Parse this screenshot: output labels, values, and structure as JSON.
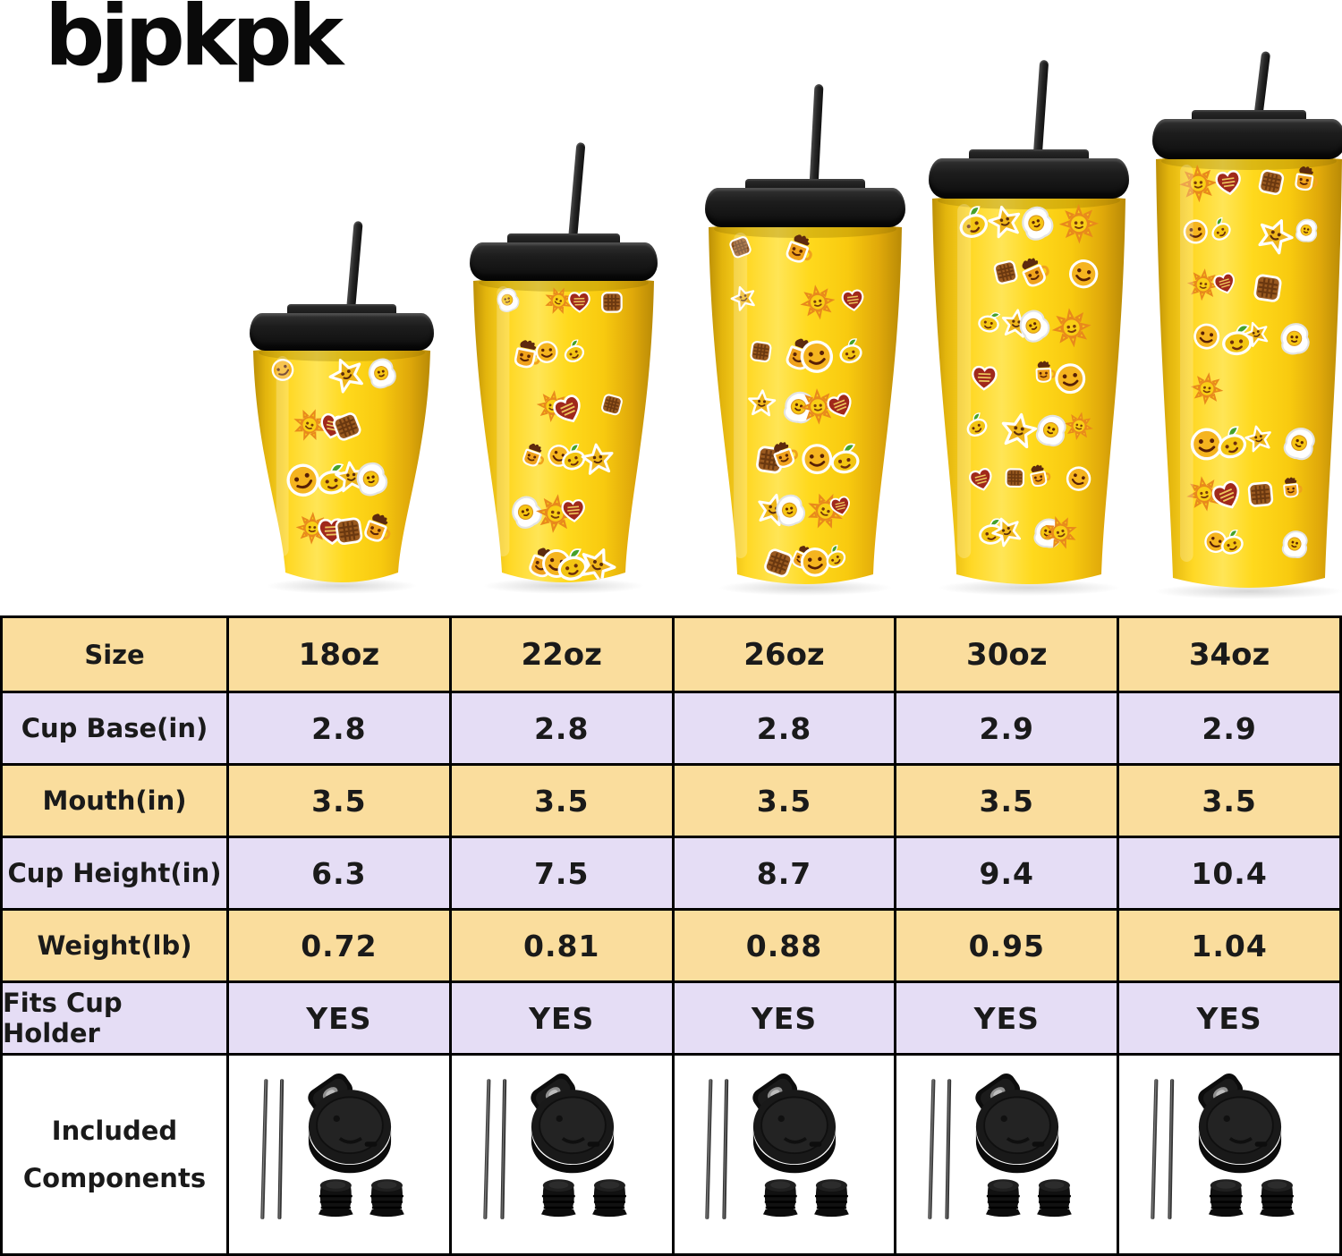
{
  "brand": {
    "logo_text": "bjpkpk"
  },
  "lineup": {
    "tumblers": [
      {
        "size": "18oz"
      },
      {
        "size": "22oz"
      },
      {
        "size": "26oz"
      },
      {
        "size": "30oz"
      },
      {
        "size": "34oz"
      }
    ],
    "sticker_icons": [
      "smiley-face",
      "lemon-character",
      "star-character",
      "fried-egg-character",
      "line-art-sun",
      "heart-badge",
      "waffle",
      "mug-character"
    ],
    "cup_style": "yellow tumbler with black flip lid and black straw"
  },
  "spec_table": {
    "rows": [
      {
        "label": "Size",
        "values": [
          "18oz",
          "22oz",
          "26oz",
          "30oz",
          "34oz"
        ]
      },
      {
        "label": "Cup Base(in)",
        "values": [
          "2.8",
          "2.8",
          "2.8",
          "2.9",
          "2.9"
        ]
      },
      {
        "label": "Mouth(in)",
        "values": [
          "3.5",
          "3.5",
          "3.5",
          "3.5",
          "3.5"
        ]
      },
      {
        "label": "Cup Height(in)",
        "values": [
          "6.3",
          "7.5",
          "8.7",
          "9.4",
          "10.4"
        ]
      },
      {
        "label": "Weight(lb)",
        "values": [
          "0.72",
          "0.81",
          "0.88",
          "0.95",
          "1.04"
        ]
      },
      {
        "label": "Fits Cup Holder",
        "values": [
          "YES",
          "YES",
          "YES",
          "YES",
          "YES"
        ]
      }
    ],
    "included_row": {
      "label_lines": [
        "Included",
        "Components"
      ],
      "component_icons": [
        "metal-straw-pair",
        "flip-top-lid",
        "straw-stopper-pair"
      ]
    }
  },
  "colors": {
    "row_warm": "#fadd9d",
    "row_lavender": "#e5ddf5",
    "table_border": "#000000",
    "cup_yellow": "#ffd91d",
    "lid_black": "#1a1a1a",
    "text": "#1a1a1a"
  }
}
